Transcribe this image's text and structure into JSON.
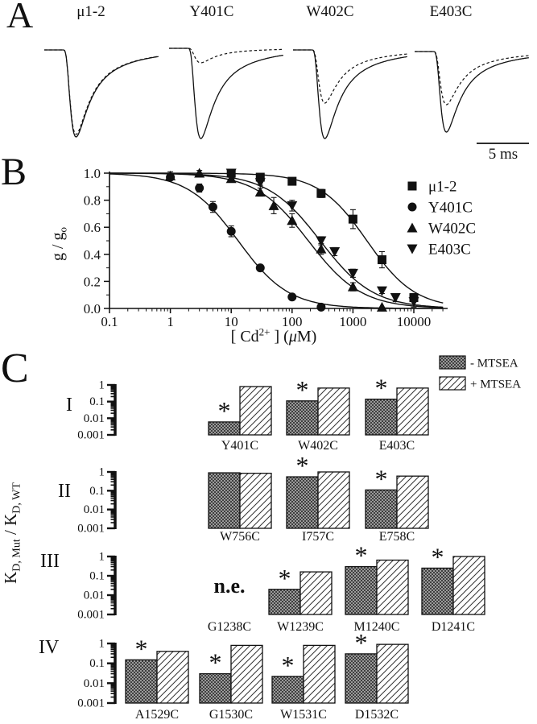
{
  "figure": {
    "panel_a": {
      "letter": "A",
      "traces": [
        {
          "label": "μ1-2",
          "cd_peak_ratio": 0.97
        },
        {
          "label": "Y401C",
          "cd_peak_ratio": 0.16
        },
        {
          "label": "W402C",
          "cd_peak_ratio": 0.6
        },
        {
          "label": "E403C",
          "cd_peak_ratio": 0.66
        }
      ],
      "scale_bar_label": "5 ms"
    },
    "panel_b": {
      "letter": "B"
    },
    "panel_c": {
      "letter": "C"
    }
  },
  "chart_data": [
    {
      "type": "line",
      "title": "Cd2+ concentration-response of conductance block",
      "xlabel": "[ Cd2+ ] (μM)",
      "xlabel_parts": [
        {
          "t": "[ Cd"
        },
        {
          "t": "2+",
          "sup": true
        },
        {
          "t": " ] ("
        },
        {
          "t": "μ",
          "italic": true
        },
        {
          "t": "M)"
        }
      ],
      "ylabel": "g / go",
      "ylabel_parts": [
        {
          "t": "g / g"
        },
        {
          "t": "o",
          "sub": true
        }
      ],
      "x_scale": "log",
      "xlim": [
        0.1,
        30000
      ],
      "ylim": [
        0,
        1.05
      ],
      "x_ticks": [
        0.1,
        1,
        10,
        100,
        1000,
        10000
      ],
      "y_ticks": [
        0,
        0.2,
        0.4,
        0.6,
        0.8,
        1
      ],
      "grid": false,
      "legend_position": "upper right",
      "series": [
        {
          "name": "μ1-2",
          "marker": "square",
          "fit_ic50": 1700,
          "fit_hill": 1.1,
          "x": [
            10,
            30,
            100,
            300,
            1000,
            3000,
            10000
          ],
          "y": [
            1.0,
            0.97,
            0.94,
            0.85,
            0.66,
            0.36,
            0.08
          ],
          "err": [
            0,
            0,
            0.02,
            0.03,
            0.07,
            0.06,
            0.03
          ]
        },
        {
          "name": "Y401C",
          "marker": "circle",
          "fit_ic50": 13,
          "fit_hill": 1.05,
          "x": [
            1,
            3,
            5,
            10,
            30,
            100,
            300
          ],
          "y": [
            0.97,
            0.89,
            0.75,
            0.57,
            0.3,
            0.085,
            0.01
          ],
          "err": [
            0.02,
            0.03,
            0.04,
            0.04,
            0.02,
            0.015,
            0
          ]
        },
        {
          "name": "W402C",
          "marker": "triangle-up",
          "fit_ic50": 185,
          "fit_hill": 1.0,
          "x": [
            1,
            3,
            10,
            30,
            50,
            100,
            300,
            1000,
            3000
          ],
          "y": [
            0.98,
            1.0,
            0.96,
            0.86,
            0.76,
            0.65,
            0.44,
            0.16,
            0.01
          ],
          "err": [
            0.03,
            0.02,
            0.02,
            0.03,
            0.06,
            0.05,
            0.04,
            0.03,
            0
          ]
        },
        {
          "name": "E403C",
          "marker": "triangle-down",
          "fit_ic50": 290,
          "fit_hill": 1.0,
          "x": [
            10,
            30,
            100,
            300,
            500,
            1000,
            3000,
            5000,
            10000
          ],
          "y": [
            1.0,
            0.93,
            0.76,
            0.5,
            0.42,
            0.26,
            0.13,
            0.08,
            0.05
          ],
          "err": [
            0,
            0.02,
            0.04,
            0.03,
            0.03,
            0.03,
            0.02,
            0.03,
            0.04
          ]
        }
      ]
    },
    {
      "type": "bar",
      "ylabel": "KD, Mut / KD, WT",
      "ylabel_parts": [
        {
          "t": "K"
        },
        {
          "t": "D, Mut",
          "sub": true
        },
        {
          "t": " / K"
        },
        {
          "t": "D, WT",
          "sub": true
        }
      ],
      "y_scale": "log",
      "ylim": [
        0.001,
        1
      ],
      "y_ticks": [
        1,
        0.1,
        0.01,
        0.001
      ],
      "legend": [
        {
          "label": "- MTSEA",
          "pattern": "stipple"
        },
        {
          "label": "+ MTSEA",
          "pattern": "hatch"
        }
      ],
      "no_effect_note": "n.e.",
      "sig_marker": "*",
      "rows": [
        {
          "label": "I",
          "groups": [
            {
              "name": "Y401C",
              "minus_mtsea": 0.006,
              "plus_mtsea": 0.8,
              "significant": true
            },
            {
              "name": "W402C",
              "minus_mtsea": 0.11,
              "plus_mtsea": 0.65,
              "significant": true
            },
            {
              "name": "E403C",
              "minus_mtsea": 0.14,
              "plus_mtsea": 0.65,
              "significant": true
            }
          ]
        },
        {
          "label": "II",
          "groups": [
            {
              "name": "W756C",
              "minus_mtsea": 0.9,
              "plus_mtsea": 0.85,
              "significant": false
            },
            {
              "name": "I757C",
              "minus_mtsea": 0.55,
              "plus_mtsea": 1.0,
              "significant": true
            },
            {
              "name": "E758C",
              "minus_mtsea": 0.11,
              "plus_mtsea": 0.6,
              "significant": true
            }
          ]
        },
        {
          "label": "III",
          "groups": [
            {
              "name": "G1238C",
              "no_effect": true
            },
            {
              "name": "W1239C",
              "minus_mtsea": 0.02,
              "plus_mtsea": 0.16,
              "significant": true
            },
            {
              "name": "M1240C",
              "minus_mtsea": 0.3,
              "plus_mtsea": 0.65,
              "significant": true
            },
            {
              "name": "D1241C",
              "minus_mtsea": 0.25,
              "plus_mtsea": 1.0,
              "significant": true
            }
          ]
        },
        {
          "label": "IV",
          "groups": [
            {
              "name": "A1529C",
              "minus_mtsea": 0.15,
              "plus_mtsea": 0.4,
              "significant": true
            },
            {
              "name": "G1530C",
              "minus_mtsea": 0.03,
              "plus_mtsea": 0.8,
              "significant": true
            },
            {
              "name": "W1531C",
              "minus_mtsea": 0.022,
              "plus_mtsea": 0.8,
              "significant": true
            },
            {
              "name": "D1532C",
              "minus_mtsea": 0.3,
              "plus_mtsea": 0.9,
              "significant": true
            }
          ]
        }
      ]
    }
  ]
}
